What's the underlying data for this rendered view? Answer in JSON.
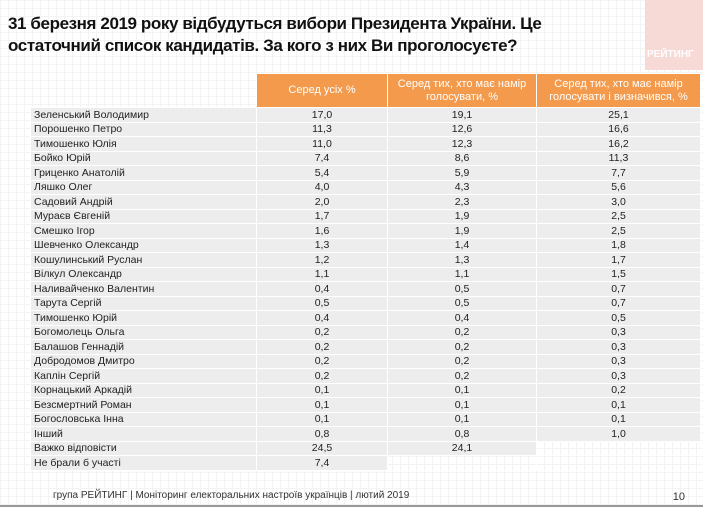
{
  "title": "31 березня 2019 року відбудуться вибори Президента України. Це остаточний список кандидатів. За кого з них Ви проголосуєте?",
  "logo": "РЕЙТИНГ",
  "headers": [
    "Серед усіх %",
    "Серед тих, хто має намір голосувати, %",
    "Серед тих, хто має намір голосувати і визначився, %"
  ],
  "rows": [
    [
      "Зеленський Володимир",
      "17,0",
      "19,1",
      "25,1"
    ],
    [
      "Порошенко  Петро",
      "11,3",
      "12,6",
      "16,6"
    ],
    [
      "Тимошенко Юлія",
      "11,0",
      "12,3",
      "16,2"
    ],
    [
      "Бойко Юрій",
      "7,4",
      "8,6",
      "11,3"
    ],
    [
      "Гриценко Анатолій",
      "5,4",
      "5,9",
      "7,7"
    ],
    [
      "Ляшко Олег",
      "4,0",
      "4,3",
      "5,6"
    ],
    [
      "Садовий Андрій",
      "2,0",
      "2,3",
      "3,0"
    ],
    [
      "Мураєв Євгеній",
      "1,7",
      "1,9",
      "2,5"
    ],
    [
      "Смешко Ігор",
      "1,6",
      "1,9",
      "2,5"
    ],
    [
      "Шевченко Олександр",
      "1,3",
      "1,4",
      "1,8"
    ],
    [
      "Кошулинський Руслан",
      "1,2",
      "1,3",
      "1,7"
    ],
    [
      "Вілкул Олександр",
      "1,1",
      "1,1",
      "1,5"
    ],
    [
      "Наливайченко  Валентин",
      "0,4",
      "0,5",
      "0,7"
    ],
    [
      "Тарута Сергій",
      "0,5",
      "0,5",
      "0,7"
    ],
    [
      "Тимошенко Юрій",
      "0,4",
      "0,4",
      "0,5"
    ],
    [
      "Богомолець  Ольга",
      "0,2",
      "0,2",
      "0,3"
    ],
    [
      "Балашов  Геннадій",
      "0,2",
      "0,2",
      "0,3"
    ],
    [
      "Добродомов  Дмитро",
      "0,2",
      "0,2",
      "0,3"
    ],
    [
      "Каплін Сергій",
      "0,2",
      "0,2",
      "0,3"
    ],
    [
      "Корнацький Аркадій",
      "0,1",
      "0,1",
      "0,2"
    ],
    [
      "Безсмертний Роман",
      "0,1",
      "0,1",
      "0,1"
    ],
    [
      "Богословська Інна",
      "0,1",
      "0,1",
      "0,1"
    ],
    [
      "Інший",
      "0,8",
      "0,8",
      "1,0"
    ],
    [
      "Важко відповісти",
      "24,5",
      "24,1",
      ""
    ],
    [
      "Не брали б участі",
      "7,4",
      "",
      ""
    ]
  ],
  "footer": "група РЕЙТИНГ |  Моніторинг електоральних настроїв українців | лютий  2019",
  "page_number": "10"
}
